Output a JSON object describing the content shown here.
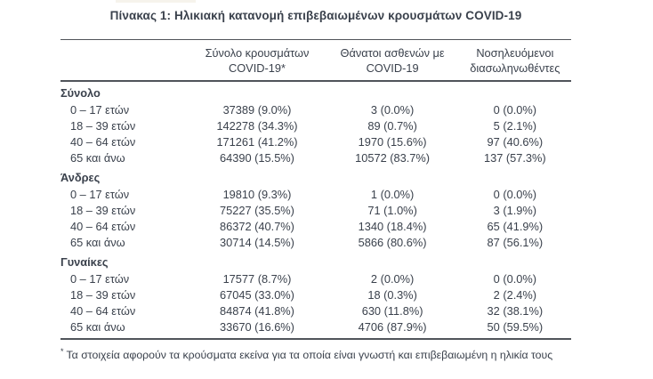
{
  "page": {
    "title": "Πίνακας 1: Ηλικιακή κατανομή επιβεβαιωμένων κρουσμάτων COVID-19",
    "footnote_marker": "*",
    "footnote_text": "Τα στοιχεία αφορούν τα κρούσματα εκείνα για τα οποία είναι γνωστή και επιβεβαιωμένη η ηλικία τους"
  },
  "colors": {
    "text": "#3a414c",
    "rule": "#50545a",
    "background": "#ffffff"
  },
  "chart_data": {
    "type": "table",
    "title": "Πίνακας 1: Ηλικιακή κατανομή επιβεβαιωμένων κρουσμάτων COVID-19",
    "column_headers": [
      {
        "line1": "Σύνολο κρουσμάτων",
        "line2": "COVID-19*"
      },
      {
        "line1": "Θάνατοι ασθενών με",
        "line2": "COVID-19"
      },
      {
        "line1": "Νοσηλευόμενοι",
        "line2": "διασωληνωθέντες"
      }
    ],
    "sections": [
      {
        "label": "Σύνολο",
        "rows": [
          {
            "age": "0 – 17 ετών",
            "cases": "37389 (9.0%)",
            "deaths": "3 (0.0%)",
            "intubated": "0 (0.0%)"
          },
          {
            "age": "18 – 39 ετών",
            "cases": "142278 (34.3%)",
            "deaths": "89 (0.7%)",
            "intubated": "5 (2.1%)"
          },
          {
            "age": "40 – 64 ετών",
            "cases": "171261 (41.2%)",
            "deaths": "1970 (15.6%)",
            "intubated": "97 (40.6%)"
          },
          {
            "age": "65 και άνω",
            "cases": "64390 (15.5%)",
            "deaths": "10572 (83.7%)",
            "intubated": "137 (57.3%)"
          }
        ]
      },
      {
        "label": "Άνδρες",
        "rows": [
          {
            "age": "0 – 17 ετών",
            "cases": "19810 (9.3%)",
            "deaths": "1 (0.0%)",
            "intubated": "0 (0.0%)"
          },
          {
            "age": "18 – 39 ετών",
            "cases": "75227 (35.5%)",
            "deaths": "71 (1.0%)",
            "intubated": "3 (1.9%)"
          },
          {
            "age": "40 – 64 ετών",
            "cases": "86372 (40.7%)",
            "deaths": "1340 (18.4%)",
            "intubated": "65 (41.9%)"
          },
          {
            "age": "65 και άνω",
            "cases": "30714 (14.5%)",
            "deaths": "5866 (80.6%)",
            "intubated": "87 (56.1%)"
          }
        ]
      },
      {
        "label": "Γυναίκες",
        "rows": [
          {
            "age": "0 – 17 ετών",
            "cases": "17577 (8.7%)",
            "deaths": "2 (0.0%)",
            "intubated": "0 (0.0%)"
          },
          {
            "age": "18 – 39 ετών",
            "cases": "67045 (33.0%)",
            "deaths": "18 (0.3%)",
            "intubated": "2 (2.4%)"
          },
          {
            "age": "40 – 64 ετών",
            "cases": "84874 (41.8%)",
            "deaths": "630 (11.8%)",
            "intubated": "32 (38.1%)"
          },
          {
            "age": "65 και άνω",
            "cases": "33670 (16.6%)",
            "deaths": "4706 (87.9%)",
            "intubated": "50 (59.5%)"
          }
        ]
      }
    ],
    "footnote": "* Τα στοιχεία αφορούν τα κρούσματα εκείνα για τα οποία είναι γνωστή και επιβεβαιωμένη η ηλικία τους"
  }
}
